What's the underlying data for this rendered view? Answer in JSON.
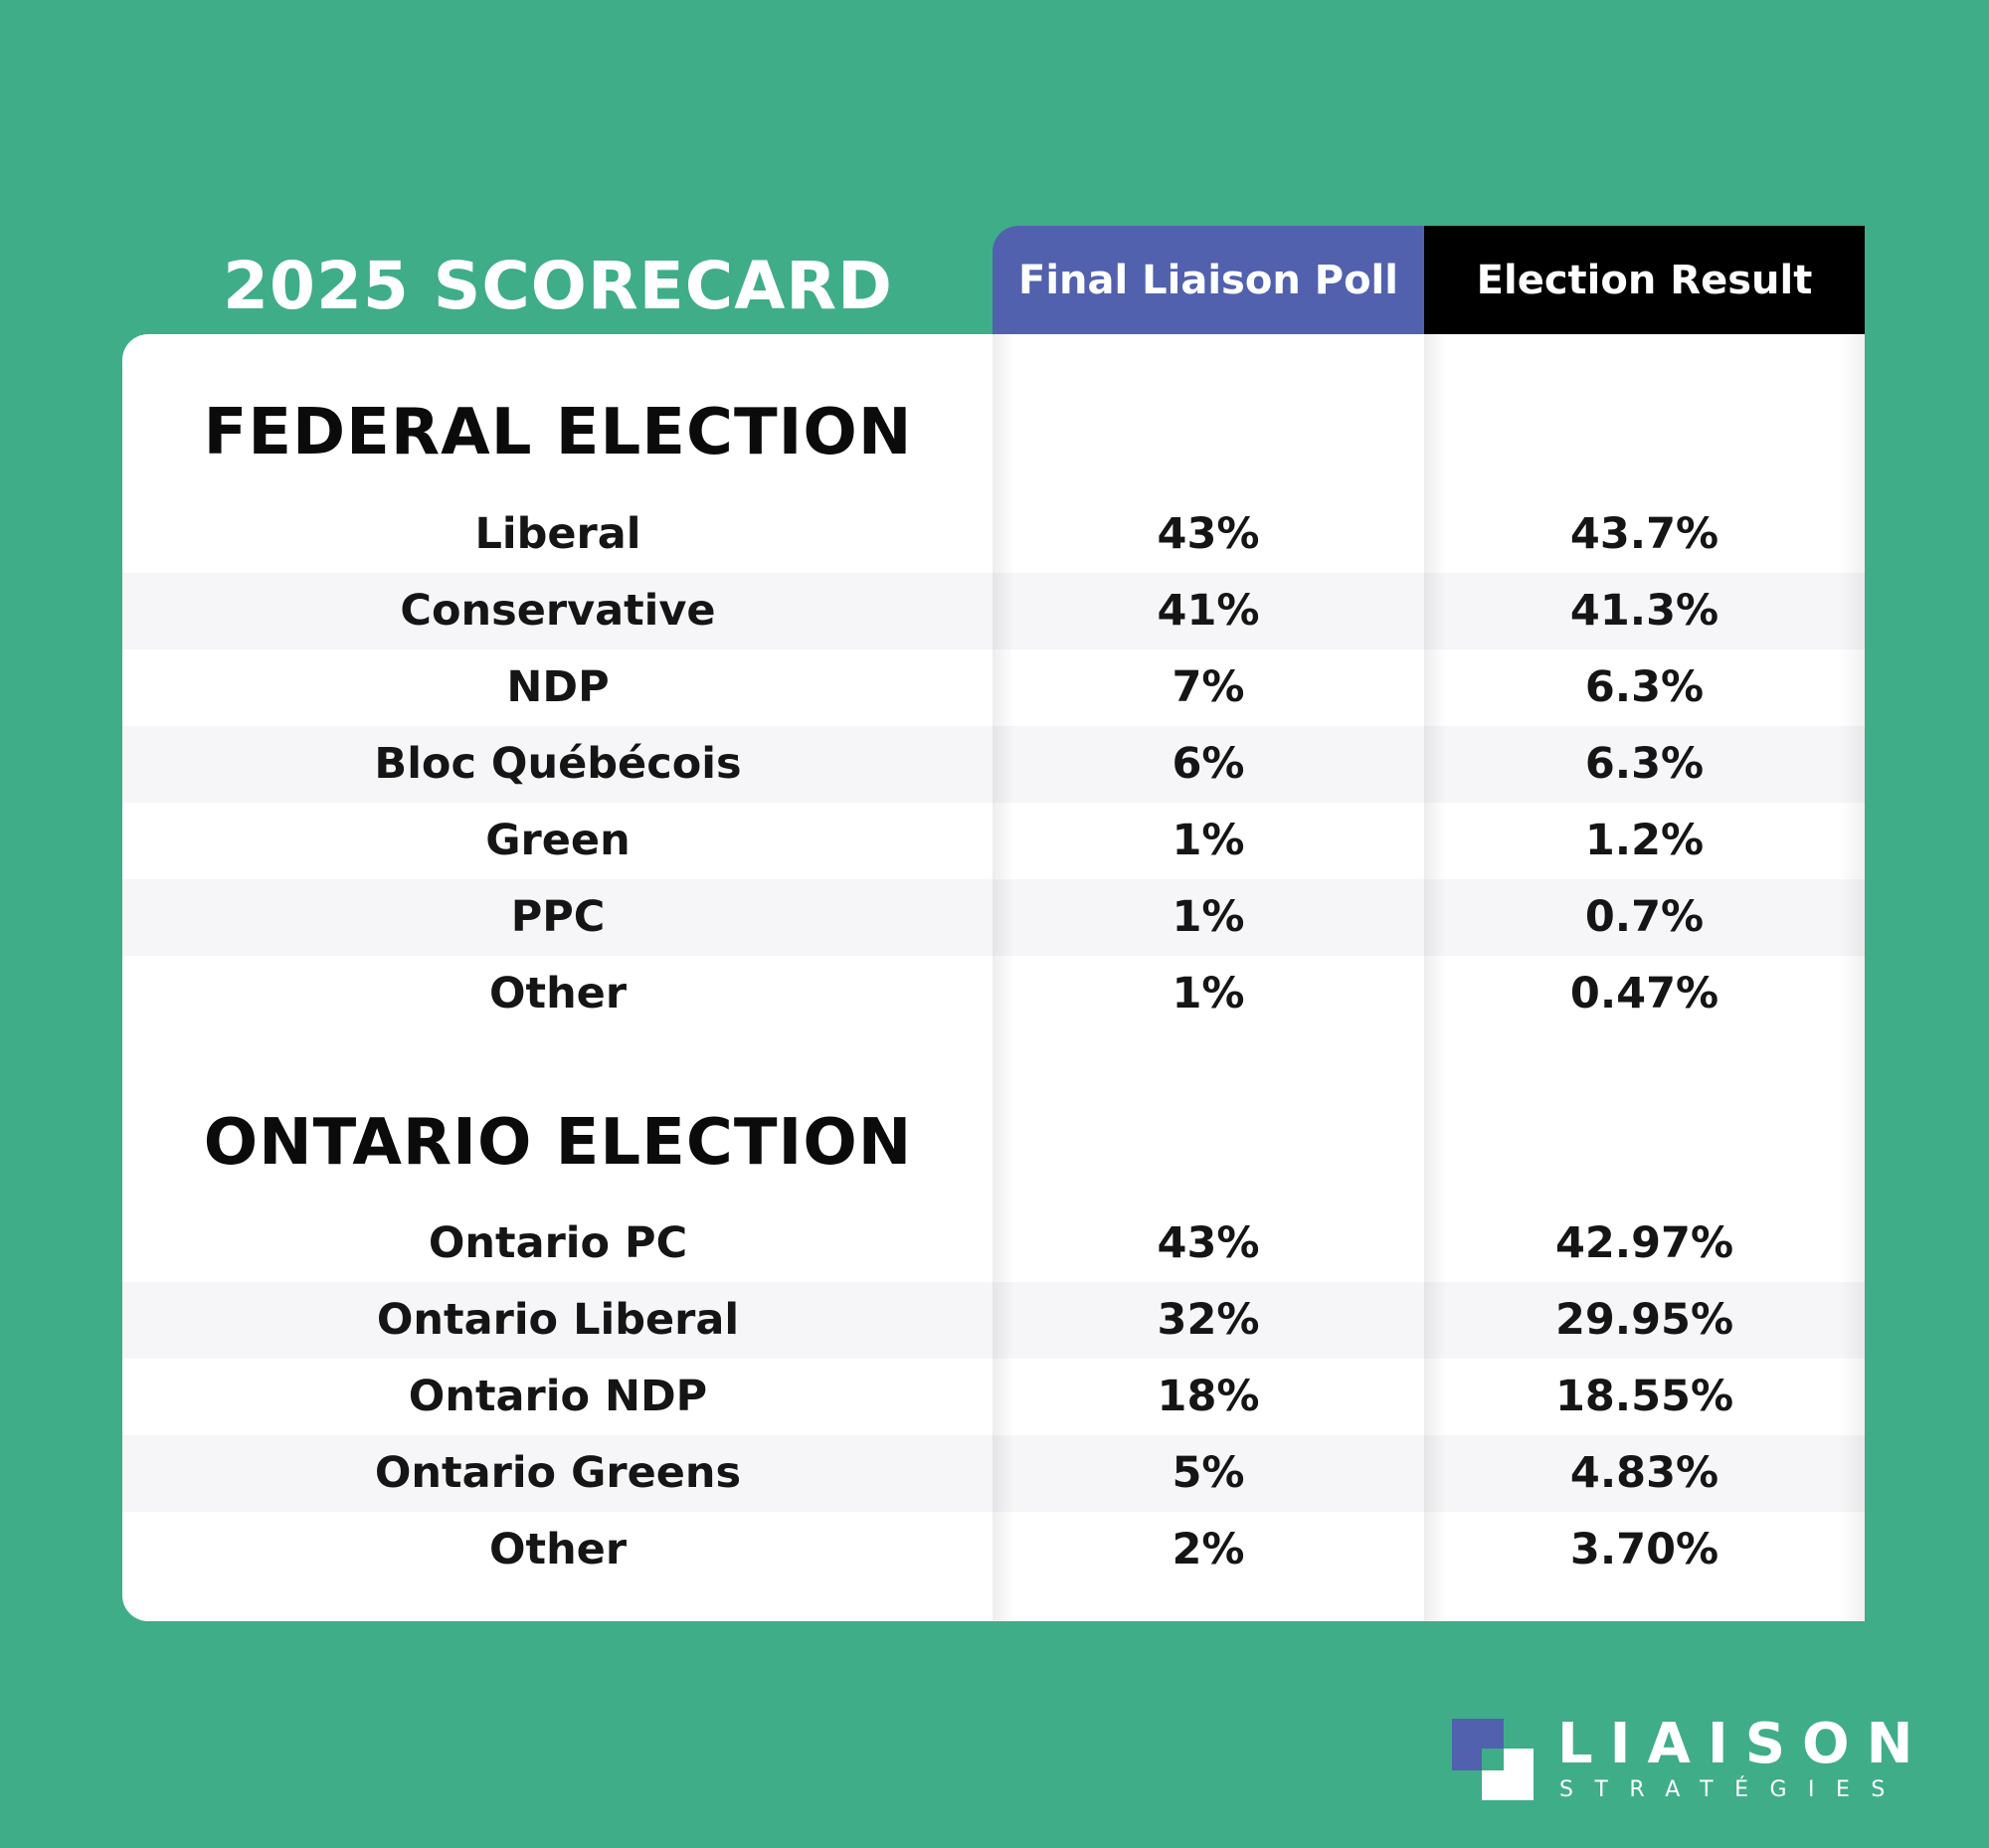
{
  "title": "2025 SCORECARD",
  "columns": {
    "poll": "Final Liaison Poll",
    "result": "Election Result"
  },
  "colors": {
    "background": "#3fad88",
    "poll_header": "#5161ae",
    "result_header": "#000000",
    "row_alt": "#f6f5f8"
  },
  "federal": {
    "heading": "FEDERAL ELECTION",
    "rows": [
      {
        "party": "Liberal",
        "poll": "43%",
        "result": "43.7%"
      },
      {
        "party": "Conservative",
        "poll": "41%",
        "result": "41.3%"
      },
      {
        "party": "NDP",
        "poll": "7%",
        "result": "6.3%"
      },
      {
        "party": "Bloc Québécois",
        "poll": "6%",
        "result": "6.3%"
      },
      {
        "party": "Green",
        "poll": "1%",
        "result": "1.2%"
      },
      {
        "party": "PPC",
        "poll": "1%",
        "result": "0.7%"
      },
      {
        "party": "Other",
        "poll": "1%",
        "result": "0.47%"
      }
    ]
  },
  "ontario": {
    "heading": "ONTARIO ELECTION",
    "rows": [
      {
        "party": "Ontario PC",
        "poll": "43%",
        "result": "42.97%"
      },
      {
        "party": "Ontario Liberal",
        "poll": "32%",
        "result": "29.95%"
      },
      {
        "party": "Ontario NDP",
        "poll": "18%",
        "result": "18.55%"
      },
      {
        "party": "Ontario Greens",
        "poll": "5%",
        "result": "4.83%"
      },
      {
        "party": "Other",
        "poll": "2%",
        "result": "3.70%"
      }
    ]
  },
  "logo": {
    "name": "LIAISON",
    "tagline": "STRATÉGIES",
    "icon": "liaison-squares-logo"
  }
}
